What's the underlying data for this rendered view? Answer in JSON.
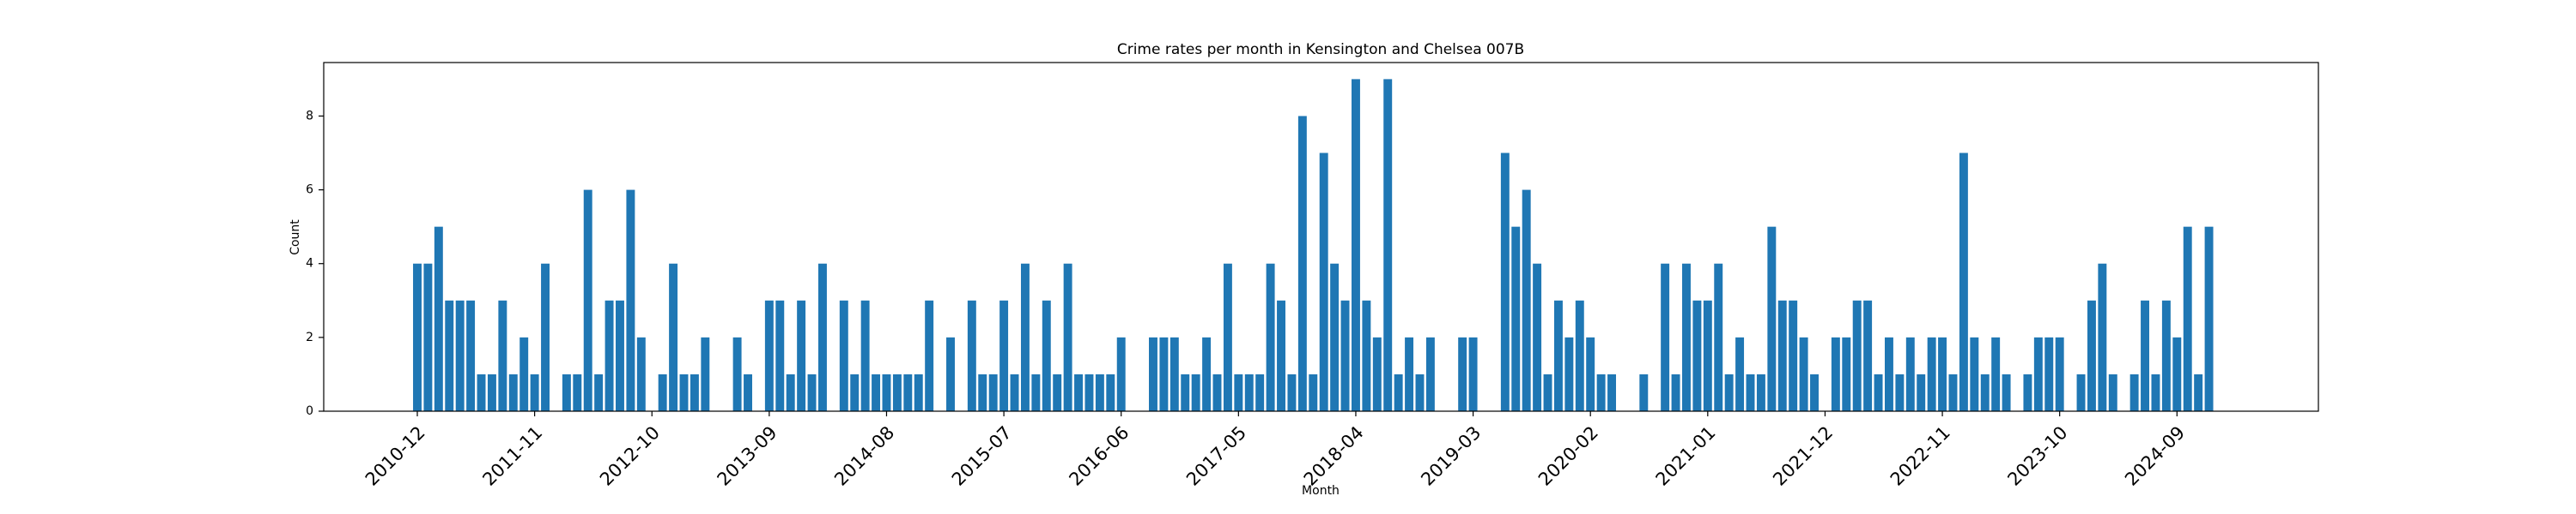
{
  "chart_data": {
    "type": "bar",
    "title": "Crime rates per month in Kensington and Chelsea 007B",
    "xlabel": "Month",
    "ylabel": "Count",
    "color": "#1f77b4",
    "categories": [
      "2010-12",
      null,
      null,
      null,
      null,
      null,
      null,
      null,
      null,
      null,
      null,
      "2011-11",
      null,
      null,
      null,
      null,
      null,
      null,
      null,
      null,
      null,
      null,
      "2012-10",
      null,
      null,
      null,
      null,
      null,
      null,
      null,
      null,
      null,
      null,
      "2013-09",
      null,
      null,
      null,
      null,
      null,
      null,
      null,
      null,
      null,
      null,
      "2014-08",
      null,
      null,
      null,
      null,
      null,
      null,
      null,
      null,
      null,
      null,
      "2015-07",
      null,
      null,
      null,
      null,
      null,
      null,
      null,
      null,
      null,
      null,
      "2016-06",
      null,
      null,
      null,
      null,
      null,
      null,
      null,
      null,
      null,
      null,
      "2017-05",
      null,
      null,
      null,
      null,
      null,
      null,
      null,
      null,
      null,
      null,
      "2018-04",
      null,
      null,
      null,
      null,
      null,
      null,
      null,
      null,
      null,
      null,
      "2019-03",
      null,
      null,
      null,
      null,
      null,
      null,
      null,
      null,
      null,
      null,
      "2020-02",
      null,
      null,
      null,
      null,
      null,
      null,
      null,
      null,
      null,
      null,
      "2021-01",
      null,
      null,
      null,
      null,
      null,
      null,
      null,
      null,
      null,
      null,
      "2021-12",
      null,
      null,
      null,
      null,
      null,
      null,
      null,
      null,
      null,
      null,
      "2022-11",
      null,
      null,
      null,
      null,
      null,
      null,
      null,
      null,
      null,
      null,
      "2023-10",
      null,
      null,
      null,
      null,
      null,
      null,
      null,
      null,
      null,
      null,
      "2024-09",
      null,
      null,
      null
    ],
    "values": [
      4,
      4,
      5,
      3,
      3,
      3,
      1,
      1,
      3,
      1,
      2,
      1,
      4,
      0,
      1,
      1,
      6,
      1,
      3,
      3,
      6,
      2,
      0,
      1,
      4,
      1,
      1,
      2,
      0,
      0,
      2,
      1,
      0,
      3,
      3,
      1,
      3,
      1,
      4,
      0,
      3,
      1,
      3,
      1,
      1,
      1,
      1,
      1,
      3,
      0,
      2,
      0,
      3,
      1,
      1,
      3,
      1,
      4,
      1,
      3,
      1,
      4,
      1,
      1,
      1,
      1,
      2,
      0,
      0,
      2,
      2,
      2,
      1,
      1,
      2,
      1,
      4,
      1,
      1,
      1,
      4,
      3,
      1,
      8,
      1,
      7,
      4,
      3,
      9,
      3,
      2,
      9,
      1,
      2,
      1,
      2,
      0,
      0,
      2,
      2,
      0,
      0,
      7,
      5,
      6,
      4,
      1,
      3,
      2,
      3,
      2,
      1,
      1,
      0,
      0,
      1,
      0,
      4,
      1,
      4,
      3,
      3,
      4,
      1,
      2,
      1,
      1,
      5,
      3,
      3,
      2,
      1,
      0,
      2,
      2,
      3,
      3,
      1,
      2,
      1,
      2,
      1,
      2,
      2,
      1,
      7,
      2,
      1,
      2,
      1,
      0,
      1,
      2,
      2,
      2,
      0,
      1,
      3,
      4,
      1,
      0,
      1,
      3,
      1,
      3,
      2,
      5,
      1,
      5
    ],
    "ylim": [
      0,
      9.45
    ],
    "yticks": [
      0,
      2,
      4,
      6,
      8
    ]
  }
}
